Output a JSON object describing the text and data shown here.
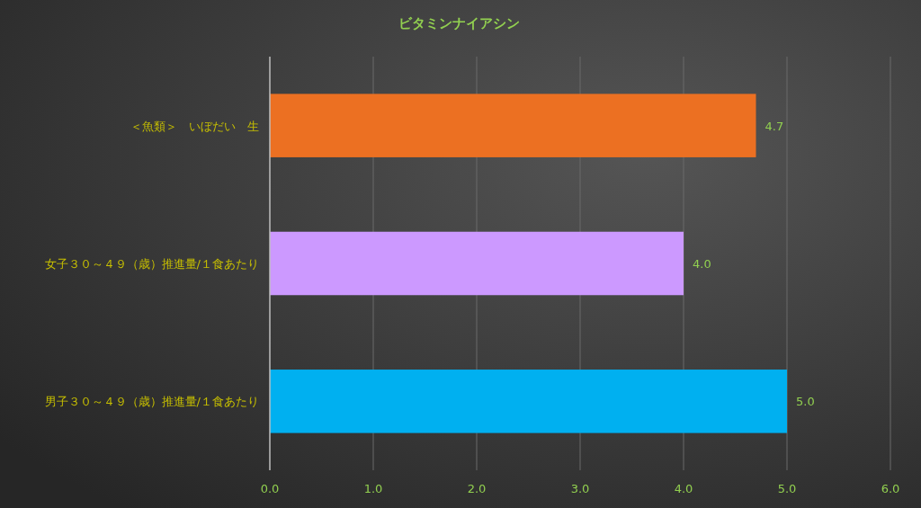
{
  "chart_data": {
    "type": "bar",
    "orientation": "horizontal",
    "title": "ビタミンナイアシン",
    "categories": [
      "＜魚類＞　いぼだい　生",
      "女子３０～４９（歳）推進量/１食あたり",
      "男子３０～４９（歳）推進量/１食あたり"
    ],
    "values": [
      4.7,
      4.0,
      5.0
    ],
    "value_labels": [
      "4.7",
      "4.0",
      "5.0"
    ],
    "colors": [
      "#ec7022",
      "#cc99ff",
      "#00b0f0"
    ],
    "xlim": [
      0,
      6
    ],
    "xticks": [
      {
        "value": 0,
        "label": "0.0"
      },
      {
        "value": 1,
        "label": "1.0"
      },
      {
        "value": 2,
        "label": "2.0"
      },
      {
        "value": 3,
        "label": "3.0"
      },
      {
        "value": 4,
        "label": "4.0"
      },
      {
        "value": 5,
        "label": "5.0"
      },
      {
        "value": 6,
        "label": "6.0"
      }
    ],
    "grid": "x"
  }
}
